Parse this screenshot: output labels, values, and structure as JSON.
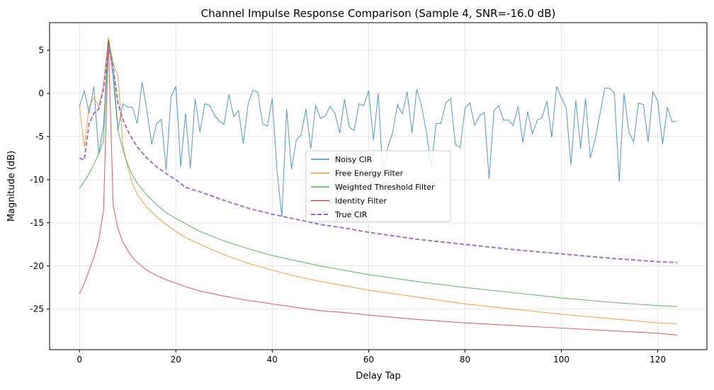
{
  "chart_data": {
    "type": "line",
    "title": "Channel Impulse Response Comparison (Sample 4, SNR=-16.0 dB)",
    "xlabel": "Delay Tap",
    "ylabel": "Magnitude (dB)",
    "xlim": [
      -6.2,
      130.2
    ],
    "ylim": [
      -29.7,
      8.2
    ],
    "xticks": [
      0,
      20,
      40,
      60,
      80,
      100,
      120
    ],
    "yticks": [
      5,
      0,
      -5,
      -10,
      -15,
      -20,
      -25
    ],
    "grid": true,
    "legend_placement": "center",
    "series": [
      {
        "name": "Noisy CIR",
        "color": "#1f77b4",
        "dash": "solid",
        "x": [
          0,
          1,
          2,
          3,
          4,
          5,
          6,
          7,
          8,
          9,
          10,
          11,
          12,
          13,
          14,
          15,
          16,
          17,
          18,
          19,
          20,
          21,
          22,
          23,
          24,
          25,
          26,
          27,
          28,
          29,
          30,
          31,
          32,
          33,
          34,
          35,
          36,
          37,
          38,
          39,
          40,
          41,
          42,
          43,
          44,
          45,
          46,
          47,
          48,
          49,
          50,
          51,
          52,
          53,
          54,
          55,
          56,
          57,
          58,
          59,
          60,
          61,
          62,
          63,
          64,
          65,
          66,
          67,
          68,
          69,
          70,
          71,
          72,
          73,
          74,
          75,
          76,
          77,
          78,
          79,
          80,
          81,
          82,
          83,
          84,
          85,
          86,
          87,
          88,
          89,
          90,
          91,
          92,
          93,
          94,
          95,
          96,
          97,
          98,
          99,
          100,
          101,
          102,
          103,
          104,
          105,
          106,
          107,
          108,
          109,
          110,
          111,
          112,
          113,
          114,
          115,
          116,
          117,
          118,
          119,
          120,
          121,
          122,
          123,
          124
        ],
        "y": [
          -1.5,
          0.3,
          -2.3,
          0.8,
          -7.0,
          -3.7,
          6.2,
          1.8,
          -4.2,
          -1.2,
          -1.6,
          -1.6,
          -3.5,
          1.3,
          -2.0,
          -5.9,
          -3.5,
          -3.0,
          -8.9,
          -0.4,
          0.8,
          -8.5,
          -2.3,
          -8.7,
          -0.6,
          -4.5,
          -1.2,
          -1.4,
          -2.5,
          -3.2,
          -3.6,
          -0.1,
          -2.7,
          -2.0,
          -5.8,
          -1.2,
          0.4,
          0.1,
          -3.5,
          -3.8,
          -0.6,
          -9.0,
          -14.3,
          -1.8,
          -8.8,
          -5.4,
          -4.8,
          -1.8,
          -6.4,
          -1.4,
          -2.9,
          -2.6,
          -1.5,
          -2.3,
          -4.6,
          -0.7,
          -3.9,
          -4.3,
          -1.2,
          -1.4,
          0.3,
          -5.4,
          0.0,
          -9.8,
          -6.2,
          -4.5,
          -1.3,
          -2.4,
          0.2,
          -4.6,
          0.5,
          -1.5,
          -4.5,
          -8.5,
          -3.5,
          -3.5,
          -1.1,
          -0.6,
          -5.9,
          -6.3,
          -1.7,
          -1.1,
          -3.7,
          -2.6,
          -2.2,
          -9.9,
          -2.0,
          -1.4,
          -3.1,
          -3.1,
          -3.7,
          -1.5,
          -5.7,
          -2.1,
          -4.7,
          -3.1,
          -2.8,
          -0.9,
          -5.1,
          0.8,
          -0.5,
          -1.7,
          -8.3,
          -0.8,
          -6.4,
          -0.6,
          -7.5,
          -5.3,
          -2.4,
          0.6,
          0.6,
          0.0,
          -10.2,
          0.0,
          -4.5,
          -5.6,
          -1.1,
          -1.3,
          -5.6,
          0.2,
          -0.9,
          -5.9,
          -1.6,
          -3.3,
          -3.2
        ]
      },
      {
        "name": "Free Energy Filter",
        "color": "#ff7f0e",
        "dash": "solid",
        "x": [
          0,
          1,
          2,
          3,
          4,
          5,
          6,
          7,
          8,
          9,
          10,
          11,
          12,
          14,
          16,
          18,
          20,
          22,
          25,
          30,
          35,
          40,
          45,
          50,
          55,
          60,
          70,
          80,
          90,
          100,
          110,
          120,
          124
        ],
        "y": [
          -1.5,
          -6.2,
          -1.5,
          -0.5,
          -1.5,
          1.0,
          6.5,
          3.5,
          2.0,
          -6.0,
          -8.5,
          -10.5,
          -11.7,
          -13.2,
          -14.3,
          -15.2,
          -16.0,
          -16.7,
          -17.5,
          -18.7,
          -19.7,
          -20.5,
          -21.2,
          -21.8,
          -22.3,
          -22.8,
          -23.6,
          -24.4,
          -25.0,
          -25.6,
          -26.1,
          -26.6,
          -26.7
        ]
      },
      {
        "name": "Weighted Threshold Filter",
        "color": "#2ca02c",
        "dash": "solid",
        "x": [
          0,
          1,
          2,
          3,
          4,
          5,
          6,
          7,
          8,
          9,
          10,
          11,
          12,
          14,
          16,
          18,
          20,
          22,
          25,
          30,
          35,
          40,
          45,
          50,
          55,
          60,
          70,
          80,
          90,
          100,
          110,
          120,
          124
        ],
        "y": [
          -11.0,
          -10.2,
          -9.3,
          -8.2,
          -7.0,
          -5.5,
          6.2,
          3.0,
          -4.3,
          -6.5,
          -8.2,
          -9.5,
          -10.4,
          -11.8,
          -12.9,
          -13.8,
          -14.5,
          -15.1,
          -16.0,
          -17.1,
          -18.0,
          -18.8,
          -19.4,
          -20.0,
          -20.5,
          -21.0,
          -21.8,
          -22.5,
          -23.1,
          -23.7,
          -24.2,
          -24.6,
          -24.7
        ]
      },
      {
        "name": "Identity Filter",
        "color": "#d62728",
        "dash": "solid",
        "x": [
          0,
          1,
          2,
          3,
          4,
          5,
          6,
          7,
          8,
          9,
          10,
          11,
          12,
          14,
          16,
          18,
          20,
          22,
          25,
          30,
          35,
          40,
          45,
          50,
          55,
          60,
          70,
          80,
          90,
          100,
          110,
          120,
          124
        ],
        "y": [
          -23.2,
          -22.0,
          -20.5,
          -19.0,
          -17.0,
          -13.5,
          6.0,
          -13.0,
          -15.7,
          -17.2,
          -18.2,
          -19.0,
          -19.6,
          -20.5,
          -21.1,
          -21.6,
          -22.0,
          -22.4,
          -22.9,
          -23.5,
          -24.0,
          -24.4,
          -24.8,
          -25.2,
          -25.4,
          -25.7,
          -26.2,
          -26.6,
          -26.9,
          -27.2,
          -27.5,
          -27.8,
          -28.0
        ]
      },
      {
        "name": "True CIR",
        "color": "#9467bd",
        "dash": "dashed",
        "x": [
          0,
          1,
          2,
          3,
          4,
          5,
          6,
          7,
          8,
          9,
          10,
          11,
          12,
          14,
          16,
          18,
          20,
          22,
          25,
          30,
          35,
          40,
          45,
          50,
          55,
          60,
          70,
          80,
          90,
          100,
          110,
          120,
          124
        ],
        "y": [
          -7.5,
          -7.7,
          -3.5,
          -2.3,
          -1.8,
          0.5,
          5.5,
          3.0,
          -1.2,
          -3.0,
          -4.3,
          -5.3,
          -6.2,
          -7.5,
          -8.5,
          -9.3,
          -10.0,
          -10.9,
          -11.4,
          -12.4,
          -13.3,
          -14.0,
          -14.6,
          -15.2,
          -15.6,
          -16.1,
          -16.9,
          -17.5,
          -18.1,
          -18.6,
          -19.1,
          -19.5,
          -19.6
        ]
      }
    ]
  }
}
